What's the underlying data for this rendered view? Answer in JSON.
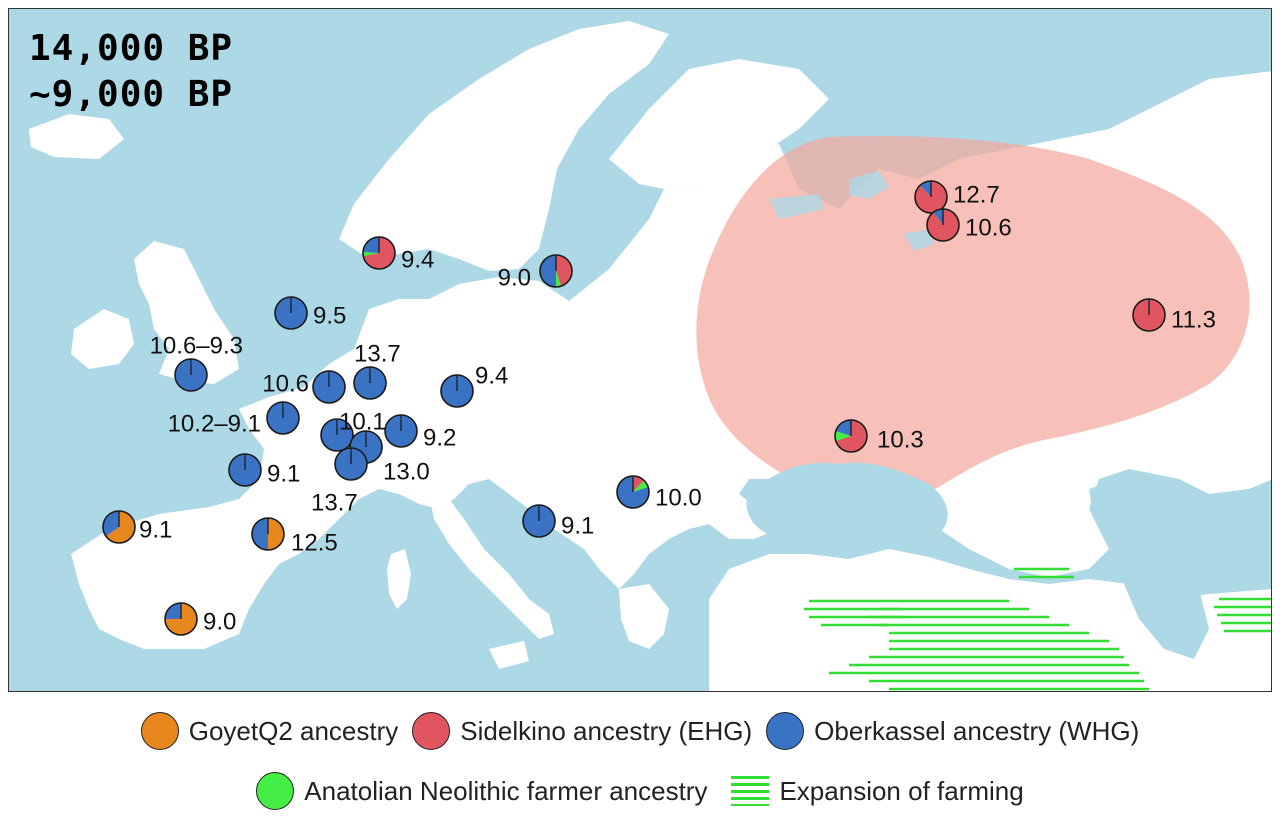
{
  "title": {
    "line1": "14,000 BP",
    "line2": "~9,000 BP"
  },
  "colors": {
    "sea": "#add8e6",
    "land": "#ffffff",
    "goyet": "#e8871e",
    "sidelkino": "#e05560",
    "oberkassel": "#3a72c4",
    "anatolian": "#44ee44",
    "ehg_region": "#f4a9a0",
    "farming_hatch": "#33dd33"
  },
  "legend": {
    "goyet": "GoyetQ2 ancestry",
    "sidelkino": "Sidelkino ancestry (EHG)",
    "oberkassel": "Oberkassel ancestry (WHG)",
    "anatolian": "Anatolian Neolithic farmer ancestry",
    "farming": "Expansion of farming"
  },
  "sites": [
    {
      "label": "9.4",
      "mix": {
        "sidelkino": 0.72,
        "oberkassel": 0.24,
        "anatolian": 0.04
      }
    },
    {
      "label": "9.0",
      "mix": {
        "sidelkino": 0.45,
        "oberkassel": 0.5,
        "anatolian": 0.05
      }
    },
    {
      "label": "12.7",
      "mix": {
        "sidelkino": 0.88,
        "oberkassel": 0.12
      }
    },
    {
      "label": "10.6",
      "mix": {
        "sidelkino": 0.9,
        "oberkassel": 0.1
      }
    },
    {
      "label": "11.3",
      "mix": {
        "sidelkino": 0.99,
        "oberkassel": 0.01
      }
    },
    {
      "label": "10.3",
      "mix": {
        "sidelkino": 0.7,
        "oberkassel": 0.2,
        "anatolian": 0.1
      }
    },
    {
      "label": "9.5",
      "mix": {
        "oberkassel": 0.99,
        "sidelkino": 0.01
      }
    },
    {
      "label": "10.6–9.3",
      "mix": {
        "oberkassel": 0.99,
        "sidelkino": 0.01
      }
    },
    {
      "label": "10.6",
      "mix": {
        "oberkassel": 0.99,
        "sidelkino": 0.01
      }
    },
    {
      "label": "13.7",
      "mix": {
        "oberkassel": 0.99,
        "sidelkino": 0.01
      }
    },
    {
      "label": "9.4",
      "mix": {
        "oberkassel": 0.99,
        "sidelkino": 0.01
      }
    },
    {
      "label": "10.2–9.1",
      "mix": {
        "oberkassel": 0.99,
        "sidelkino": 0.01
      }
    },
    {
      "label": "10.1",
      "mix": {
        "oberkassel": 0.99,
        "sidelkino": 0.01
      }
    },
    {
      "label": "9.2",
      "mix": {
        "oberkassel": 0.99,
        "sidelkino": 0.01
      }
    },
    {
      "label": "13.0",
      "mix": {
        "oberkassel": 0.99,
        "sidelkino": 0.01
      }
    },
    {
      "label": "9.1",
      "mix": {
        "oberkassel": 0.99,
        "sidelkino": 0.01
      }
    },
    {
      "label": "13.7",
      "mix": {
        "oberkassel": 0.99,
        "sidelkino": 0.01
      }
    },
    {
      "label": "10.0",
      "mix": {
        "oberkassel": 0.8,
        "sidelkino": 0.12,
        "anatolian": 0.08
      }
    },
    {
      "label": "9.1",
      "mix": {
        "oberkassel": 0.99,
        "sidelkino": 0.01
      }
    },
    {
      "label": "9.1",
      "mix": {
        "oberkassel": 0.35,
        "goyet": 0.65
      }
    },
    {
      "label": "12.5",
      "mix": {
        "oberkassel": 0.5,
        "goyet": 0.5
      }
    },
    {
      "label": "9.0",
      "mix": {
        "oberkassel": 0.25,
        "goyet": 0.75
      }
    }
  ]
}
